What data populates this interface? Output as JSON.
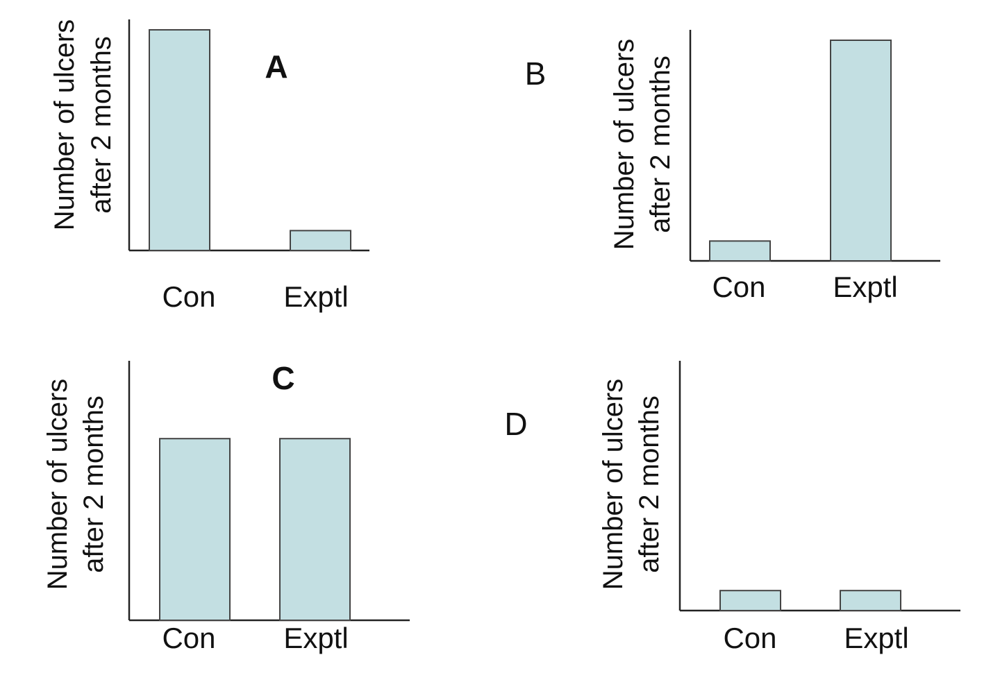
{
  "chart_data": [
    {
      "type": "bar",
      "panel_label": "A",
      "categories": [
        "Con",
        "Exptl"
      ],
      "values": [
        100,
        9
      ],
      "ylabel": [
        "Number of ulcers",
        "after 2 months"
      ],
      "ylim": [
        0,
        100
      ]
    },
    {
      "type": "bar",
      "panel_label": "B",
      "categories": [
        "Con",
        "Exptl"
      ],
      "values": [
        9,
        100
      ],
      "ylabel": [
        "Number of ulcers",
        "after 2 months"
      ],
      "ylim": [
        0,
        100
      ]
    },
    {
      "type": "bar",
      "panel_label": "C",
      "categories": [
        "Con",
        "Exptl"
      ],
      "values": [
        70,
        70
      ],
      "ylabel": [
        "Number of ulcers",
        "after 2 months"
      ],
      "ylim": [
        0,
        100
      ]
    },
    {
      "type": "bar",
      "panel_label": "D",
      "categories": [
        "Con",
        "Exptl"
      ],
      "values": [
        8,
        8
      ],
      "ylabel": [
        "Number of ulcers",
        "after 2 months"
      ],
      "ylim": [
        0,
        100
      ]
    }
  ],
  "colors": {
    "bar_fill": "#c3dfe2",
    "bar_stroke": "#444444",
    "axis": "#222222"
  }
}
